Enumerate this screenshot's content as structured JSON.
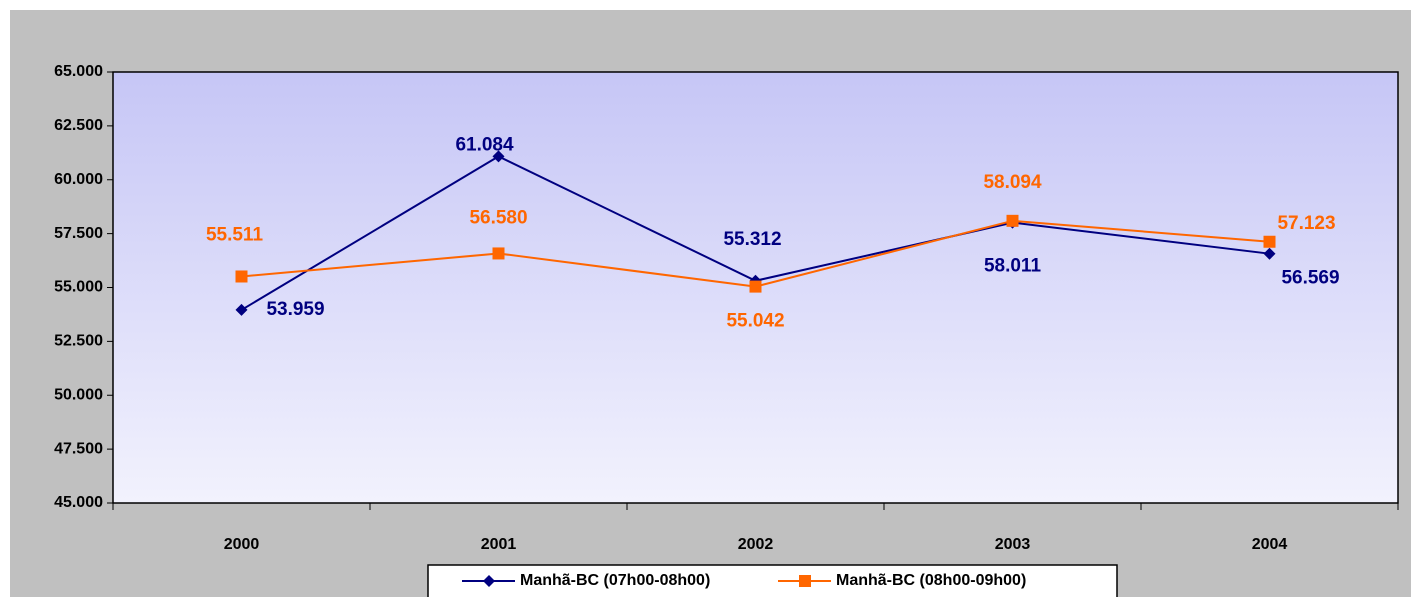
{
  "chart_data": {
    "type": "line",
    "categories": [
      "2000",
      "2001",
      "2002",
      "2003",
      "2004"
    ],
    "series": [
      {
        "name": "Manhã-BC (07h00-08h00)",
        "color": "#000080",
        "marker": "diamond",
        "values": [
          53959,
          61084,
          55312,
          58011,
          56569
        ],
        "value_labels": [
          "53.959",
          "61.084",
          "55.312",
          "58.011",
          "56.569"
        ]
      },
      {
        "name": "Manhã-BC (08h00-09h00)",
        "color": "#ff6600",
        "marker": "square",
        "values": [
          55511,
          56580,
          55042,
          58094,
          57123
        ],
        "value_labels": [
          "55.511",
          "56.580",
          "55.042",
          "58.094",
          "57.123"
        ]
      }
    ],
    "ylim": [
      45000,
      65000
    ],
    "yticks": [
      {
        "value": 45000,
        "label": "45.000"
      },
      {
        "value": 47500,
        "label": "47.500"
      },
      {
        "value": 50000,
        "label": "50.000"
      },
      {
        "value": 52500,
        "label": "52.500"
      },
      {
        "value": 55000,
        "label": "55.000"
      },
      {
        "value": 57500,
        "label": "57.500"
      },
      {
        "value": 60000,
        "label": "60.000"
      },
      {
        "value": 62500,
        "label": "62.500"
      },
      {
        "value": 65000,
        "label": "65.000"
      }
    ],
    "grid": false,
    "legend": "bottom"
  }
}
